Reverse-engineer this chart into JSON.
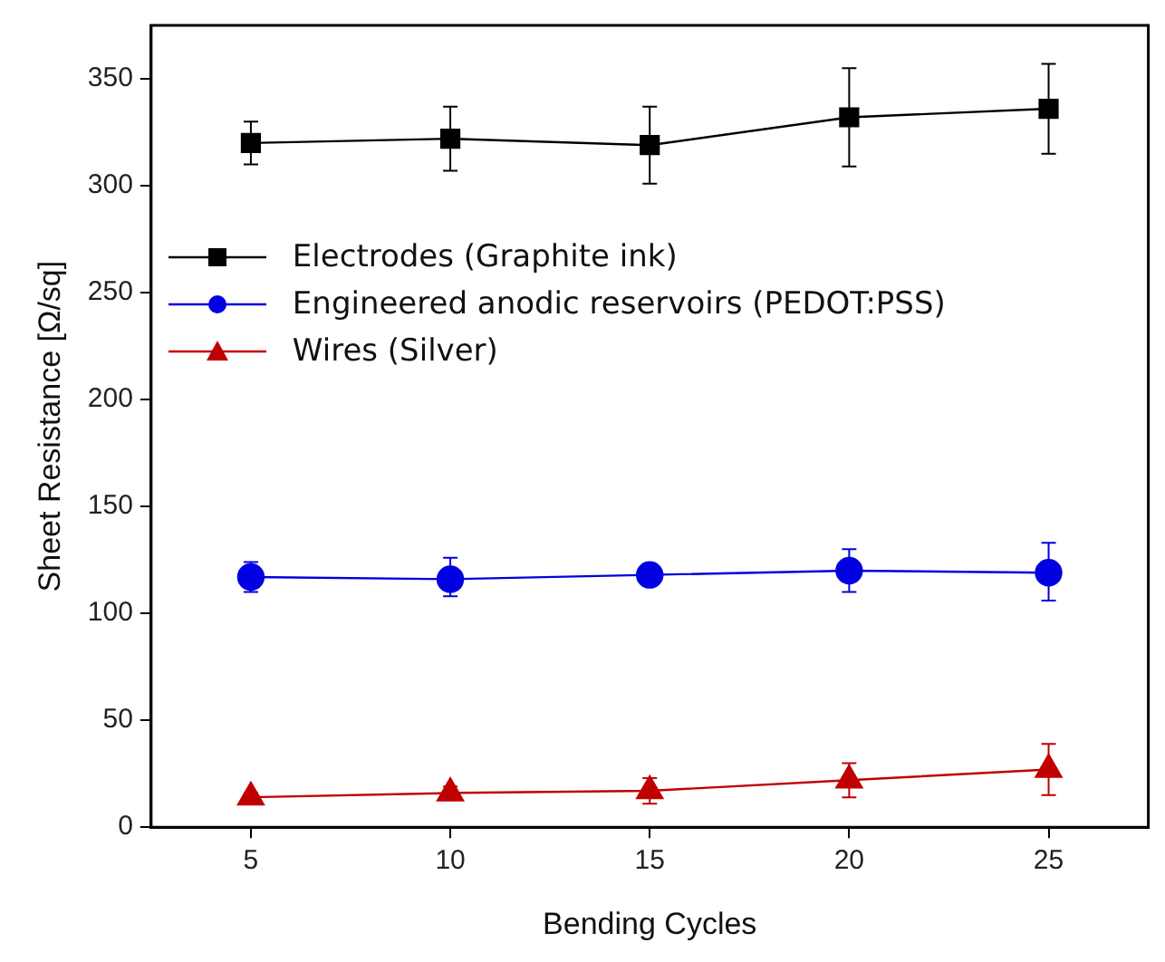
{
  "chart_data": {
    "type": "line",
    "xlabel": "Bending Cycles",
    "ylabel": "Sheet Resistance [Ω/sq]",
    "x": [
      5,
      10,
      15,
      20,
      25
    ],
    "xlim": [
      2.5,
      27.5
    ],
    "xticks": [
      5,
      10,
      15,
      20,
      25
    ],
    "ylim": [
      0,
      375
    ],
    "yticks": [
      0,
      50,
      100,
      150,
      200,
      250,
      300,
      350
    ],
    "grid": false,
    "legend": "left",
    "line_style": "solid",
    "series": [
      {
        "name": "Electrodes (Graphite ink)",
        "color": "#000000",
        "marker": "square",
        "values": [
          320,
          322,
          319,
          332,
          336
        ],
        "errors": [
          [
            310,
            330
          ],
          [
            307,
            337
          ],
          [
            301,
            337
          ],
          [
            309,
            355
          ],
          [
            315,
            357
          ]
        ]
      },
      {
        "name": "Engineered anodic reservoirs (PEDOT:PSS)",
        "color": "#0000e0",
        "marker": "circle",
        "values": [
          117,
          116,
          118,
          120,
          119
        ],
        "errors": [
          [
            110,
            124
          ],
          [
            108,
            126
          ],
          [
            113,
            123
          ],
          [
            110,
            130
          ],
          [
            106,
            133
          ]
        ]
      },
      {
        "name": "Wires (Silver)",
        "color": "#c00000",
        "marker": "triangle",
        "values": [
          14,
          16,
          17,
          22,
          27
        ],
        "errors": [
          [
            12,
            16
          ],
          [
            13,
            19
          ],
          [
            11,
            23
          ],
          [
            14,
            30
          ],
          [
            15,
            39
          ]
        ]
      }
    ]
  }
}
